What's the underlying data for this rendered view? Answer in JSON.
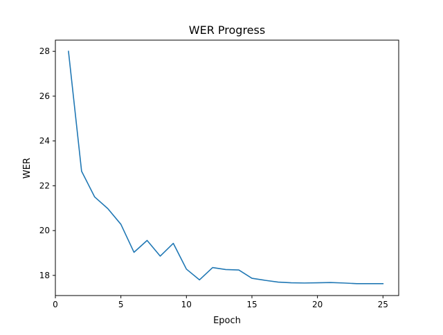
{
  "chart_data": {
    "type": "line",
    "title": "WER Progress",
    "xlabel": "Epoch",
    "ylabel": "WER",
    "xlim": [
      0,
      26.2
    ],
    "ylim": [
      17.1,
      28.5
    ],
    "xticks": [
      0,
      5,
      10,
      15,
      20,
      25
    ],
    "yticks": [
      18,
      20,
      22,
      24,
      26,
      28
    ],
    "grid": false,
    "series": [
      {
        "color": "#1f77b4",
        "x": [
          1,
          2,
          3,
          4,
          5,
          6,
          7,
          8,
          9,
          10,
          11,
          12,
          13,
          14,
          15,
          16,
          17,
          18,
          19,
          20,
          21,
          22,
          23,
          24,
          25
        ],
        "y": [
          28.0,
          22.65,
          21.5,
          20.98,
          20.28,
          19.03,
          19.56,
          18.86,
          19.43,
          18.28,
          17.8,
          18.35,
          18.26,
          18.24,
          17.87,
          17.78,
          17.7,
          17.67,
          17.66,
          17.67,
          17.68,
          17.66,
          17.63,
          17.63,
          17.63
        ]
      }
    ]
  }
}
